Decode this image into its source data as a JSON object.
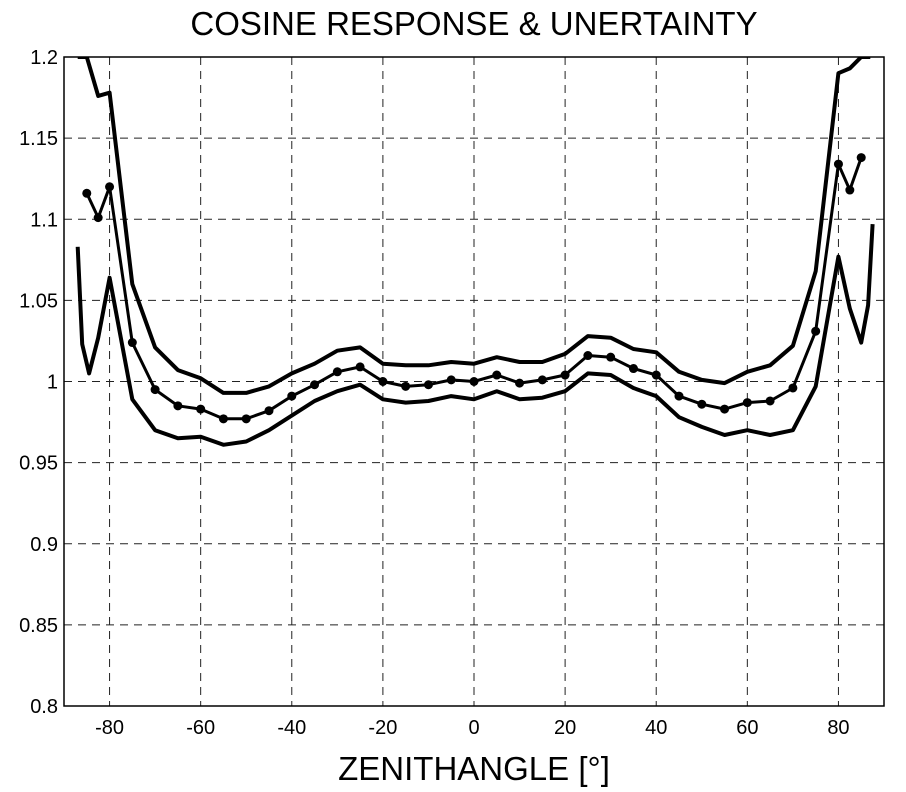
{
  "chart_data": {
    "type": "line",
    "title": "COSINE RESPONSE & UNERTAINTY",
    "xlabel": "ZENITHANGLE [°]",
    "ylabel": "",
    "xlim": [
      -90,
      90
    ],
    "ylim": [
      0.8,
      1.2
    ],
    "x_ticks": [
      -80,
      -60,
      -40,
      -20,
      0,
      20,
      40,
      60,
      80
    ],
    "x_tick_labels": [
      "-80",
      "-60",
      "-40",
      "-20",
      "0",
      "20",
      "40",
      "60",
      "80"
    ],
    "y_ticks": [
      0.8,
      0.85,
      0.9,
      0.95,
      1.0,
      1.05,
      1.1,
      1.15,
      1.2
    ],
    "y_tick_labels": [
      "0.8",
      "0.85",
      "0.9",
      "0.95",
      "1",
      "1.05",
      "1.1",
      "1.15",
      "1.2"
    ],
    "grid": true,
    "series": [
      {
        "role": "upper",
        "markers": false,
        "x": [
          -87,
          -85,
          -82.5,
          -80,
          -75,
          -70,
          -65,
          -60,
          -55,
          -50,
          -45,
          -40,
          -35,
          -30,
          -25,
          -20,
          -15,
          -10,
          -5,
          0,
          5,
          10,
          15,
          20,
          25,
          30,
          35,
          40,
          45,
          50,
          55,
          60,
          65,
          70,
          75,
          80,
          82.5,
          85,
          87
        ],
        "y": [
          1.2,
          1.2,
          1.176,
          1.178,
          1.06,
          1.021,
          1.007,
          1.002,
          0.993,
          0.993,
          0.997,
          1.005,
          1.011,
          1.019,
          1.021,
          1.011,
          1.01,
          1.01,
          1.012,
          1.011,
          1.015,
          1.012,
          1.012,
          1.017,
          1.028,
          1.027,
          1.02,
          1.018,
          1.006,
          1.001,
          0.999,
          1.006,
          1.01,
          1.022,
          1.068,
          1.19,
          1.193,
          1.2,
          1.2
        ]
      },
      {
        "role": "mean",
        "markers": true,
        "x": [
          -85,
          -82.5,
          -80,
          -75,
          -70,
          -65,
          -60,
          -55,
          -50,
          -45,
          -40,
          -35,
          -30,
          -25,
          -20,
          -15,
          -10,
          -5,
          0,
          5,
          10,
          15,
          20,
          25,
          30,
          35,
          40,
          45,
          50,
          55,
          60,
          65,
          70,
          75,
          80,
          82.5,
          85
        ],
        "y": [
          1.116,
          1.101,
          1.12,
          1.024,
          0.995,
          0.985,
          0.983,
          0.977,
          0.977,
          0.982,
          0.991,
          0.998,
          1.006,
          1.009,
          1.0,
          0.997,
          0.998,
          1.001,
          1.0,
          1.004,
          0.999,
          1.001,
          1.004,
          1.016,
          1.015,
          1.008,
          1.004,
          0.991,
          0.986,
          0.983,
          0.987,
          0.988,
          0.996,
          1.031,
          1.134,
          1.118,
          1.138
        ]
      },
      {
        "role": "lower",
        "markers": false,
        "x": [
          -87,
          -86,
          -84.5,
          -82.5,
          -80,
          -75,
          -70,
          -65,
          -60,
          -55,
          -50,
          -45,
          -40,
          -35,
          -30,
          -25,
          -20,
          -15,
          -10,
          -5,
          0,
          5,
          10,
          15,
          20,
          25,
          30,
          35,
          40,
          45,
          50,
          55,
          60,
          65,
          70,
          75,
          80,
          82.5,
          85,
          86.5,
          87.5
        ],
        "y": [
          1.083,
          1.023,
          1.005,
          1.027,
          1.064,
          0.989,
          0.97,
          0.965,
          0.966,
          0.961,
          0.963,
          0.97,
          0.979,
          0.988,
          0.994,
          0.998,
          0.989,
          0.987,
          0.988,
          0.991,
          0.989,
          0.994,
          0.989,
          0.99,
          0.994,
          1.005,
          1.004,
          0.996,
          0.991,
          0.978,
          0.972,
          0.967,
          0.97,
          0.967,
          0.97,
          0.997,
          1.077,
          1.045,
          1.024,
          1.047,
          1.097
        ]
      }
    ]
  }
}
